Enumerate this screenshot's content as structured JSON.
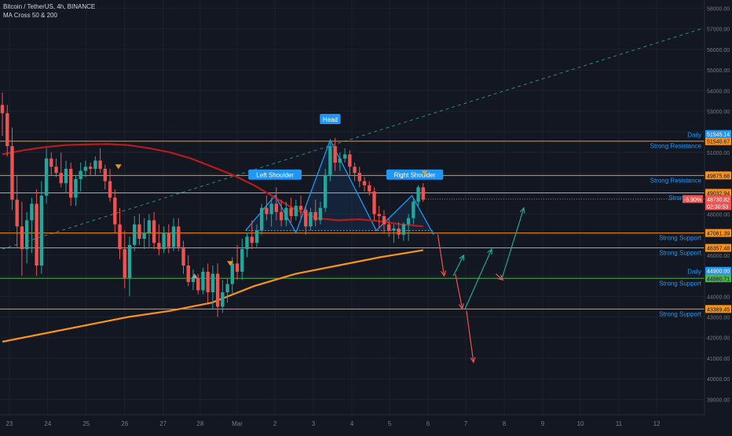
{
  "header": {
    "symbol_line": "Bitcoin / TetherUS, 4h, BINANCE",
    "indicator_line": "MA Cross 50 & 200"
  },
  "colors": {
    "background": "#131722",
    "up": "#26a69a",
    "down": "#ef5350",
    "ma50": "#b71c1c",
    "ma200": "#f7931a",
    "level_line": "#f7931a",
    "daily_line": "#4caf50",
    "pattern": "#2196f3",
    "label_blue": "#2196f3",
    "grid": "#1e222d",
    "axis_text": "#787b86",
    "trend_dashed": "#2e8b7a"
  },
  "chart_data": {
    "type": "candlestick",
    "title": "",
    "xlabel": "",
    "ylabel": "",
    "ylim": [
      38250,
      58400
    ],
    "xlim": [
      0,
      100
    ],
    "grid": true,
    "x_ticks": [
      {
        "x": 1.0,
        "label": "23"
      },
      {
        "x": 6.5,
        "label": "24"
      },
      {
        "x": 12.0,
        "label": "25"
      },
      {
        "x": 17.5,
        "label": "26"
      },
      {
        "x": 23.0,
        "label": "27"
      },
      {
        "x": 28.3,
        "label": "28"
      },
      {
        "x": 33.6,
        "label": "Mar"
      },
      {
        "x": 39.0,
        "label": "2"
      },
      {
        "x": 44.5,
        "label": "3"
      },
      {
        "x": 50.0,
        "label": "4"
      },
      {
        "x": 55.4,
        "label": "5"
      },
      {
        "x": 60.9,
        "label": "6"
      },
      {
        "x": 66.3,
        "label": "7"
      },
      {
        "x": 71.8,
        "label": "8"
      },
      {
        "x": 77.3,
        "label": "9"
      },
      {
        "x": 82.7,
        "label": "10"
      },
      {
        "x": 88.2,
        "label": "11"
      },
      {
        "x": 93.6,
        "label": "12"
      }
    ],
    "y_ticks": [
      39000,
      40000,
      41000,
      42000,
      43000,
      44000,
      45000,
      46000,
      47000,
      48000,
      49000,
      50000,
      51000,
      52000,
      53000,
      54000,
      55000,
      56000,
      57000,
      58000
    ],
    "candles": [
      {
        "x": 0.0,
        "o": 53300,
        "h": 53900,
        "l": 51800,
        "c": 52900
      },
      {
        "x": 0.7,
        "o": 52900,
        "h": 53300,
        "l": 50800,
        "c": 51300
      },
      {
        "x": 1.4,
        "o": 51300,
        "h": 52200,
        "l": 48200,
        "c": 48700
      },
      {
        "x": 2.1,
        "o": 48700,
        "h": 49900,
        "l": 46400,
        "c": 47400
      },
      {
        "x": 2.8,
        "o": 47400,
        "h": 48600,
        "l": 45000,
        "c": 46300
      },
      {
        "x": 3.5,
        "o": 46300,
        "h": 48100,
        "l": 45600,
        "c": 47700
      },
      {
        "x": 4.2,
        "o": 47700,
        "h": 48800,
        "l": 46100,
        "c": 48500
      },
      {
        "x": 4.9,
        "o": 48500,
        "h": 49200,
        "l": 45000,
        "c": 45500
      },
      {
        "x": 5.6,
        "o": 45500,
        "h": 49600,
        "l": 45100,
        "c": 48900
      },
      {
        "x": 6.3,
        "o": 48900,
        "h": 51200,
        "l": 48500,
        "c": 50700
      },
      {
        "x": 7.0,
        "o": 50700,
        "h": 51000,
        "l": 49900,
        "c": 50300
      },
      {
        "x": 7.7,
        "o": 50300,
        "h": 50700,
        "l": 49800,
        "c": 50000
      },
      {
        "x": 8.4,
        "o": 50000,
        "h": 51000,
        "l": 49300,
        "c": 49500
      },
      {
        "x": 9.1,
        "o": 49500,
        "h": 50600,
        "l": 49000,
        "c": 50200
      },
      {
        "x": 9.8,
        "o": 50200,
        "h": 50500,
        "l": 48400,
        "c": 48800
      },
      {
        "x": 10.5,
        "o": 48800,
        "h": 49900,
        "l": 48400,
        "c": 49700
      },
      {
        "x": 11.2,
        "o": 49700,
        "h": 50500,
        "l": 49100,
        "c": 50100
      },
      {
        "x": 11.9,
        "o": 50100,
        "h": 50600,
        "l": 49800,
        "c": 50300
      },
      {
        "x": 12.6,
        "o": 50300,
        "h": 50500,
        "l": 49900,
        "c": 50200
      },
      {
        "x": 13.3,
        "o": 50200,
        "h": 50800,
        "l": 49900,
        "c": 50600
      },
      {
        "x": 14.0,
        "o": 50600,
        "h": 51200,
        "l": 50000,
        "c": 50200
      },
      {
        "x": 14.7,
        "o": 50200,
        "h": 50400,
        "l": 49200,
        "c": 49600
      },
      {
        "x": 15.4,
        "o": 49600,
        "h": 50200,
        "l": 48600,
        "c": 48800
      },
      {
        "x": 16.1,
        "o": 48800,
        "h": 49200,
        "l": 47100,
        "c": 47500
      },
      {
        "x": 16.8,
        "o": 47500,
        "h": 48300,
        "l": 45800,
        "c": 46300
      },
      {
        "x": 17.5,
        "o": 46300,
        "h": 47200,
        "l": 44400,
        "c": 44900
      },
      {
        "x": 18.2,
        "o": 44900,
        "h": 46900,
        "l": 44000,
        "c": 46500
      },
      {
        "x": 18.9,
        "o": 46500,
        "h": 47900,
        "l": 46200,
        "c": 47500
      },
      {
        "x": 19.6,
        "o": 47500,
        "h": 48000,
        "l": 46500,
        "c": 46800
      },
      {
        "x": 20.3,
        "o": 46800,
        "h": 47800,
        "l": 46300,
        "c": 47100
      },
      {
        "x": 21.0,
        "o": 47100,
        "h": 48000,
        "l": 46400,
        "c": 47700
      },
      {
        "x": 21.7,
        "o": 47700,
        "h": 48100,
        "l": 46300,
        "c": 46600
      },
      {
        "x": 22.4,
        "o": 46600,
        "h": 47500,
        "l": 46000,
        "c": 46300
      },
      {
        "x": 23.1,
        "o": 46300,
        "h": 47400,
        "l": 46100,
        "c": 47100
      },
      {
        "x": 23.8,
        "o": 47100,
        "h": 47500,
        "l": 46100,
        "c": 46400
      },
      {
        "x": 24.5,
        "o": 46400,
        "h": 47800,
        "l": 46200,
        "c": 47400
      },
      {
        "x": 25.2,
        "o": 47400,
        "h": 47800,
        "l": 46200,
        "c": 46400
      },
      {
        "x": 25.9,
        "o": 46400,
        "h": 46700,
        "l": 45100,
        "c": 45500
      },
      {
        "x": 26.6,
        "o": 45500,
        "h": 46000,
        "l": 44500,
        "c": 44700
      },
      {
        "x": 27.3,
        "o": 44700,
        "h": 45300,
        "l": 44300,
        "c": 44900
      },
      {
        "x": 28.0,
        "o": 44900,
        "h": 45100,
        "l": 44100,
        "c": 44300
      },
      {
        "x": 28.7,
        "o": 44300,
        "h": 45400,
        "l": 44100,
        "c": 45200
      },
      {
        "x": 29.4,
        "o": 45200,
        "h": 45600,
        "l": 43700,
        "c": 44200
      },
      {
        "x": 30.1,
        "o": 44200,
        "h": 45500,
        "l": 43400,
        "c": 45100
      },
      {
        "x": 30.8,
        "o": 45100,
        "h": 45600,
        "l": 43000,
        "c": 43500
      },
      {
        "x": 31.5,
        "o": 43500,
        "h": 44800,
        "l": 43200,
        "c": 44200
      },
      {
        "x": 32.2,
        "o": 44200,
        "h": 44900,
        "l": 43700,
        "c": 44600
      },
      {
        "x": 32.9,
        "o": 44600,
        "h": 45900,
        "l": 44100,
        "c": 45600
      },
      {
        "x": 33.6,
        "o": 45600,
        "h": 46500,
        "l": 44800,
        "c": 45200
      },
      {
        "x": 34.3,
        "o": 45200,
        "h": 46800,
        "l": 44800,
        "c": 46300
      },
      {
        "x": 35.0,
        "o": 46300,
        "h": 47100,
        "l": 45900,
        "c": 46900
      },
      {
        "x": 35.7,
        "o": 46900,
        "h": 47700,
        "l": 46300,
        "c": 46600
      },
      {
        "x": 36.4,
        "o": 46600,
        "h": 47500,
        "l": 46400,
        "c": 47200
      },
      {
        "x": 37.1,
        "o": 47200,
        "h": 48500,
        "l": 47000,
        "c": 48300
      },
      {
        "x": 37.8,
        "o": 48300,
        "h": 48900,
        "l": 47700,
        "c": 48000
      },
      {
        "x": 38.5,
        "o": 48000,
        "h": 48800,
        "l": 47400,
        "c": 48500
      },
      {
        "x": 39.2,
        "o": 48500,
        "h": 49300,
        "l": 47700,
        "c": 48100
      },
      {
        "x": 39.9,
        "o": 48100,
        "h": 48700,
        "l": 47400,
        "c": 47700
      },
      {
        "x": 40.6,
        "o": 47700,
        "h": 48600,
        "l": 47400,
        "c": 48300
      },
      {
        "x": 41.3,
        "o": 48300,
        "h": 48800,
        "l": 47600,
        "c": 47900
      },
      {
        "x": 42.0,
        "o": 47900,
        "h": 48700,
        "l": 47700,
        "c": 48400
      },
      {
        "x": 42.7,
        "o": 48400,
        "h": 48900,
        "l": 47800,
        "c": 48200
      },
      {
        "x": 43.4,
        "o": 48200,
        "h": 48400,
        "l": 47000,
        "c": 47400
      },
      {
        "x": 44.1,
        "o": 47400,
        "h": 48300,
        "l": 47200,
        "c": 48100
      },
      {
        "x": 44.8,
        "o": 48100,
        "h": 48700,
        "l": 47400,
        "c": 47700
      },
      {
        "x": 45.5,
        "o": 47700,
        "h": 48600,
        "l": 47500,
        "c": 48300
      },
      {
        "x": 46.2,
        "o": 48300,
        "h": 50200,
        "l": 48100,
        "c": 49900
      },
      {
        "x": 46.9,
        "o": 49900,
        "h": 51600,
        "l": 49600,
        "c": 51300
      },
      {
        "x": 47.6,
        "o": 51300,
        "h": 51700,
        "l": 50100,
        "c": 50500
      },
      {
        "x": 48.3,
        "o": 50500,
        "h": 51000,
        "l": 50100,
        "c": 50700
      },
      {
        "x": 49.0,
        "o": 50700,
        "h": 51200,
        "l": 50500,
        "c": 50900
      },
      {
        "x": 49.7,
        "o": 50900,
        "h": 51100,
        "l": 49900,
        "c": 50300
      },
      {
        "x": 50.4,
        "o": 50300,
        "h": 50500,
        "l": 49600,
        "c": 50000
      },
      {
        "x": 51.1,
        "o": 50000,
        "h": 50300,
        "l": 49300,
        "c": 49600
      },
      {
        "x": 51.8,
        "o": 49600,
        "h": 49800,
        "l": 49100,
        "c": 49400
      },
      {
        "x": 52.5,
        "o": 49400,
        "h": 49600,
        "l": 48900,
        "c": 49100
      },
      {
        "x": 53.2,
        "o": 49100,
        "h": 49300,
        "l": 47700,
        "c": 48000
      },
      {
        "x": 53.9,
        "o": 48000,
        "h": 48400,
        "l": 47300,
        "c": 47900
      },
      {
        "x": 54.6,
        "o": 47900,
        "h": 48200,
        "l": 47100,
        "c": 47500
      },
      {
        "x": 55.3,
        "o": 47500,
        "h": 47800,
        "l": 46900,
        "c": 47200
      },
      {
        "x": 56.0,
        "o": 47200,
        "h": 47500,
        "l": 46600,
        "c": 47300
      },
      {
        "x": 56.7,
        "o": 47300,
        "h": 47600,
        "l": 46800,
        "c": 47000
      },
      {
        "x": 57.4,
        "o": 47000,
        "h": 47600,
        "l": 46700,
        "c": 47500
      },
      {
        "x": 58.1,
        "o": 47500,
        "h": 48000,
        "l": 46700,
        "c": 47800
      },
      {
        "x": 58.8,
        "o": 47800,
        "h": 48800,
        "l": 47500,
        "c": 48600
      },
      {
        "x": 59.5,
        "o": 48600,
        "h": 49400,
        "l": 48400,
        "c": 49300
      },
      {
        "x": 60.2,
        "o": 49300,
        "h": 49500,
        "l": 48600,
        "c": 48700
      }
    ],
    "ma50": [
      [
        0.0,
        50900
      ],
      [
        3.0,
        51100
      ],
      [
        6.0,
        51250
      ],
      [
        9.0,
        51350
      ],
      [
        12.0,
        51380
      ],
      [
        15.0,
        51400
      ],
      [
        18.0,
        51350
      ],
      [
        21.0,
        51200
      ],
      [
        24.0,
        51000
      ],
      [
        27.0,
        50700
      ],
      [
        30.0,
        50300
      ],
      [
        33.0,
        49900
      ],
      [
        36.0,
        49400
      ],
      [
        39.0,
        48800
      ],
      [
        42.0,
        48200
      ],
      [
        45.0,
        47800
      ],
      [
        48.0,
        47700
      ],
      [
        51.0,
        47750
      ],
      [
        54.0,
        47650
      ],
      [
        57.0,
        47500
      ],
      [
        60.2,
        47400
      ]
    ],
    "ma200": [
      [
        0.0,
        41800
      ],
      [
        6.0,
        42200
      ],
      [
        12.0,
        42600
      ],
      [
        18.0,
        43000
      ],
      [
        24.0,
        43300
      ],
      [
        30.0,
        43700
      ],
      [
        36.0,
        44500
      ],
      [
        42.0,
        45100
      ],
      [
        48.0,
        45500
      ],
      [
        54.0,
        45900
      ],
      [
        60.2,
        46250
      ]
    ],
    "horizontal_levels": [
      {
        "price": 51540.67,
        "price_label": "51540.67",
        "text": "Strong Resistance",
        "type": "level"
      },
      {
        "price": 49875.68,
        "price_label": "49875.68",
        "text": "Strong Resistance",
        "type": "level"
      },
      {
        "price": 49032.94,
        "price_label": "49032.94",
        "text": "Strong Resi",
        "type": "level"
      },
      {
        "price": 47081.39,
        "price_label": "47081.39",
        "text": "Strong Support",
        "type": "level"
      },
      {
        "price": 46357.48,
        "price_label": "46357.48",
        "text": "Strong Support",
        "type": "level"
      },
      {
        "price": 44880.71,
        "price_label": "44880.71",
        "text": "Strong Support",
        "type": "daily"
      },
      {
        "price": 43389.45,
        "price_label": "43389.45",
        "text": "Strong Support",
        "type": "level"
      }
    ],
    "daily_labels": [
      {
        "price": 51545.14,
        "text": "Daily",
        "price_label": "51545.14"
      },
      {
        "price": 44900.0,
        "text": "Daily",
        "price_label": "44900.00"
      }
    ],
    "price_markers": [
      {
        "price": 58000,
        "label": "58000.00"
      },
      {
        "price": 48730.82,
        "label": "48730.82",
        "pct": "-5.90%",
        "countdown": "02:30:53"
      }
    ],
    "pattern": {
      "left_shoulder_label": "Left Shoulder",
      "head_label": "Head",
      "right_shoulder_label": "Right Shoulder",
      "neckline_price": 47200,
      "points": [
        [
          34.8,
          47200
        ],
        [
          39.0,
          48900
        ],
        [
          42.0,
          47100
        ],
        [
          46.9,
          51600
        ],
        [
          53.5,
          47200
        ],
        [
          58.6,
          48900
        ],
        [
          61.7,
          47000
        ]
      ]
    },
    "trend_dashed": {
      "from": [
        0.0,
        46300
      ],
      "to": [
        100.0,
        57000
      ]
    },
    "arrows": [
      {
        "from": [
          62.3,
          47000
        ],
        "to": [
          63.2,
          45000
        ],
        "dir": "down"
      },
      {
        "from": [
          64.5,
          45000
        ],
        "to": [
          66.0,
          46000
        ],
        "dir": "up"
      },
      {
        "from": [
          64.8,
          45100
        ],
        "to": [
          65.8,
          43400
        ],
        "dir": "down"
      },
      {
        "from": [
          66.2,
          43400
        ],
        "to": [
          70.0,
          46300
        ],
        "dir": "up"
      },
      {
        "from": [
          66.4,
          43300
        ],
        "to": [
          67.4,
          40800
        ],
        "dir": "down"
      },
      {
        "from": [
          70.6,
          45100
        ],
        "to": [
          71.6,
          44800
        ],
        "dir": "down"
      },
      {
        "from": [
          71.4,
          44800
        ],
        "to": [
          74.6,
          48300
        ],
        "dir": "up"
      }
    ]
  }
}
